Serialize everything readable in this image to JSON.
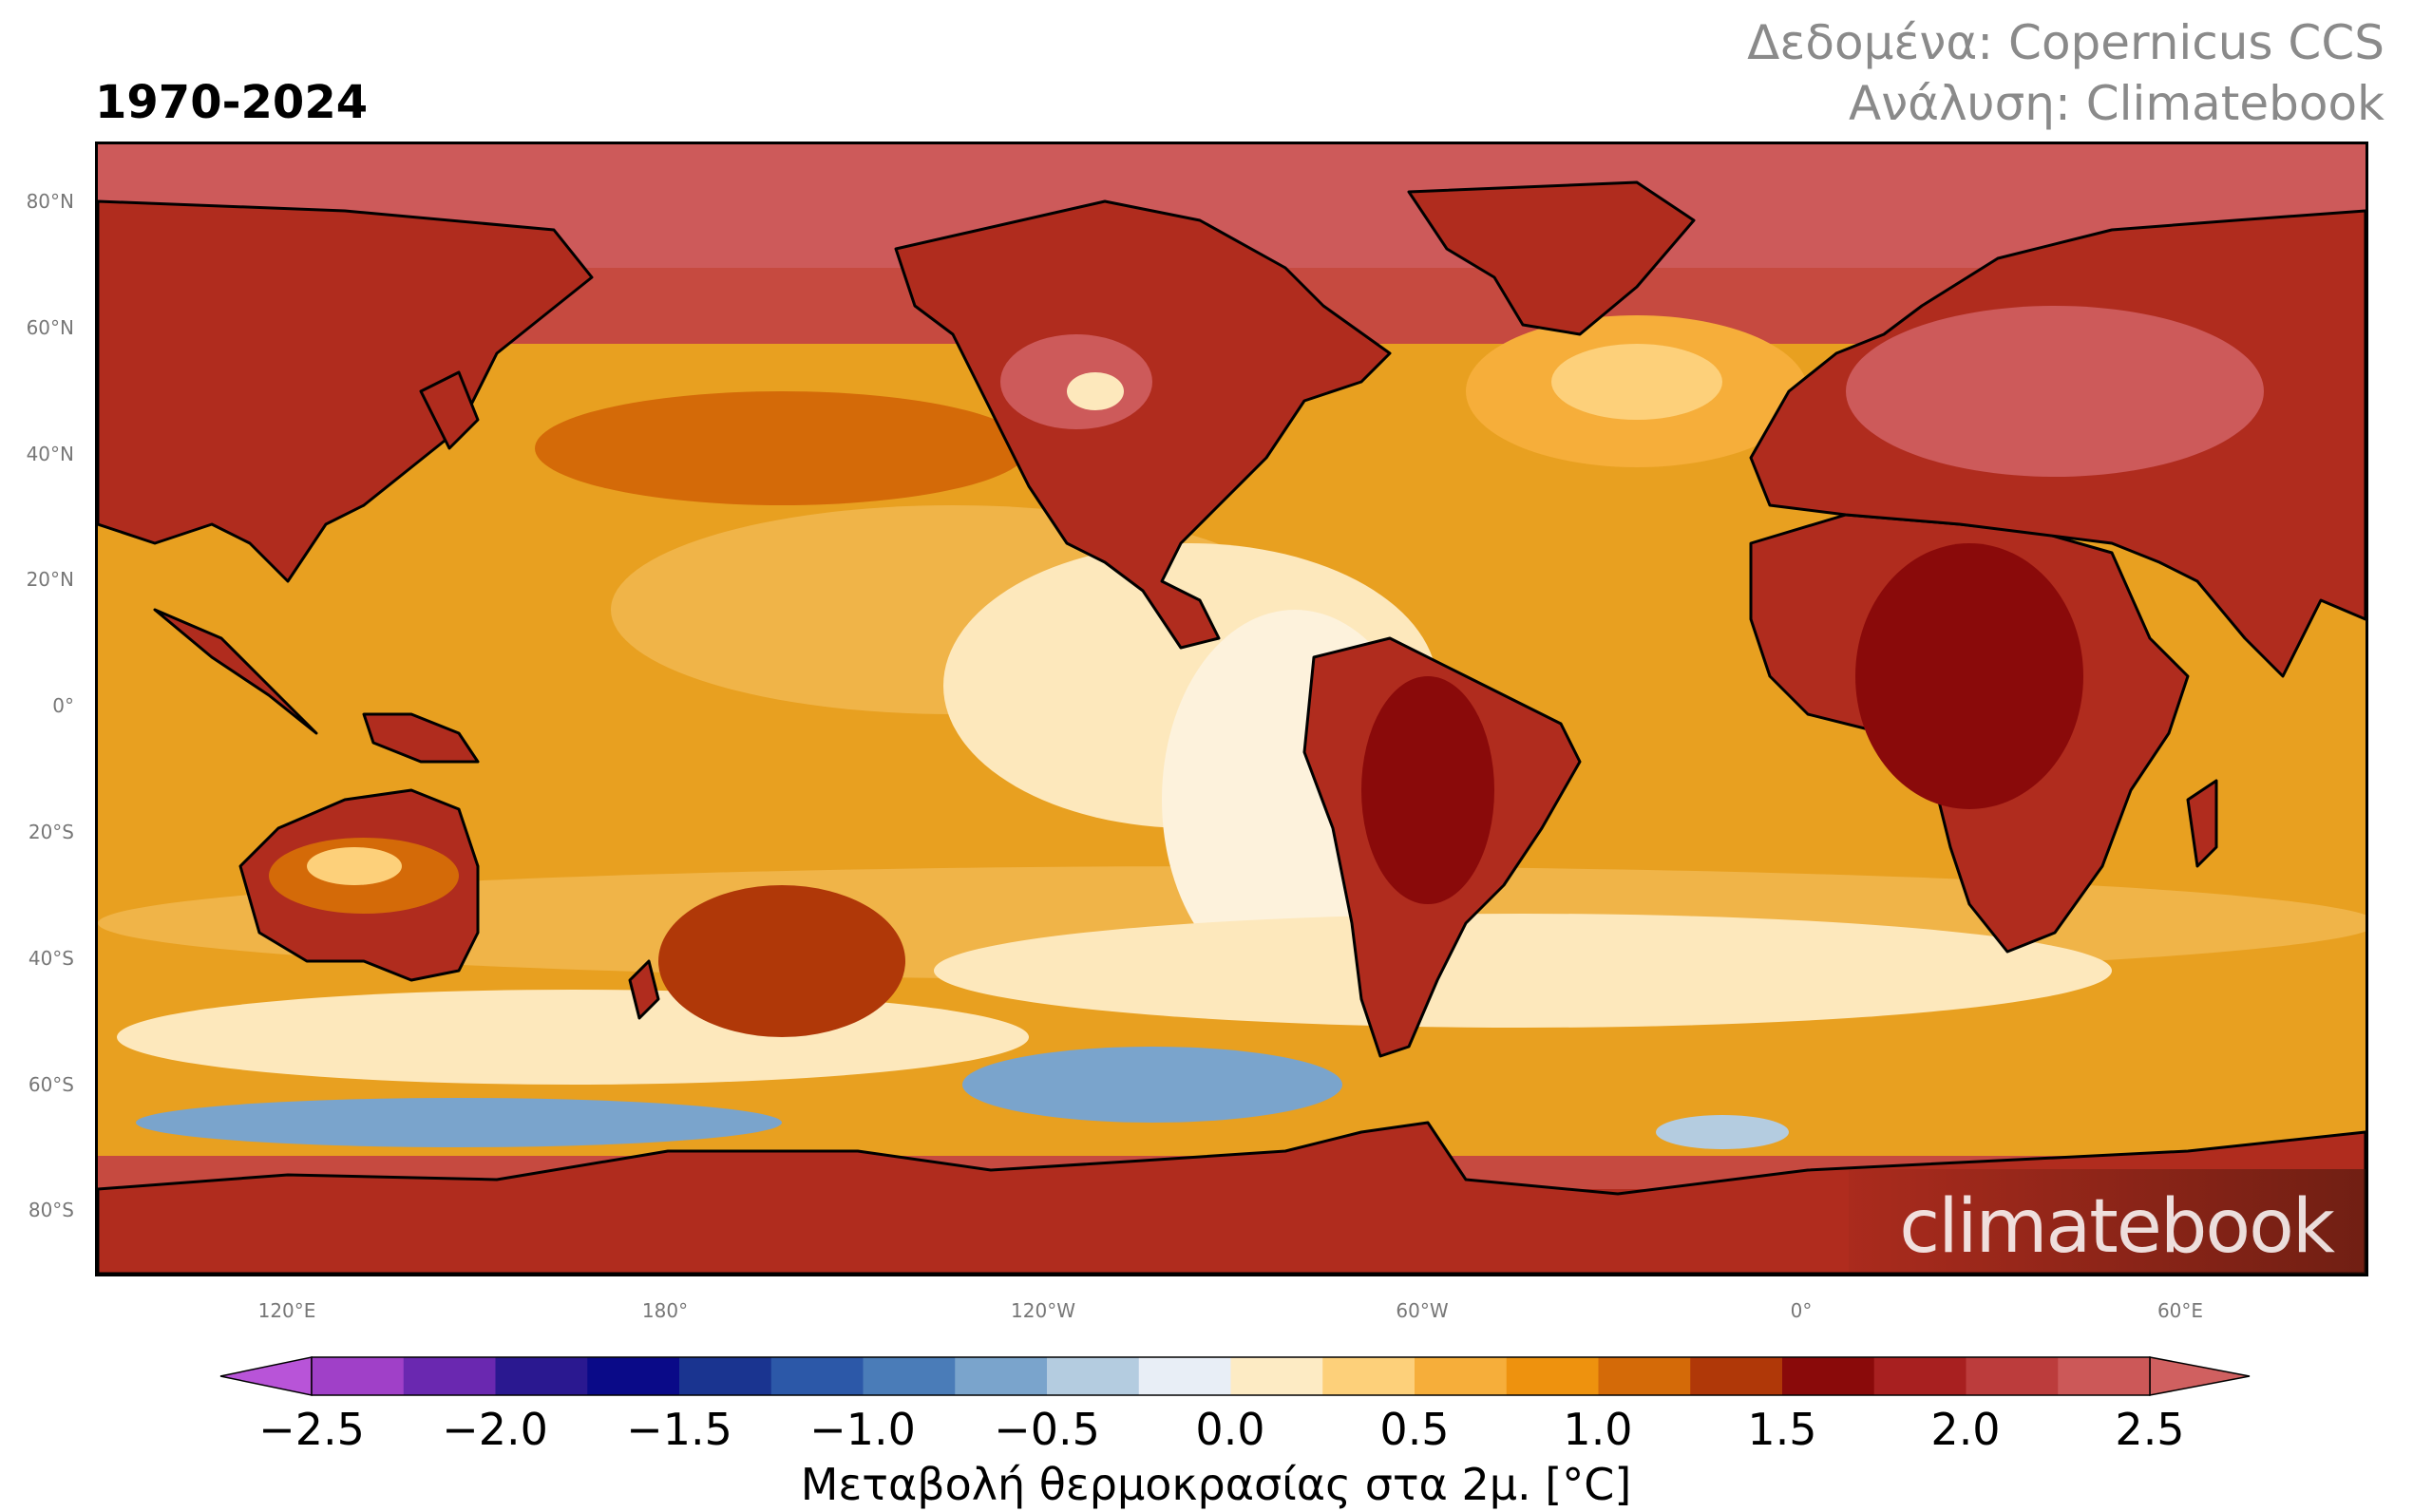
{
  "period": "1970-2024",
  "credits": {
    "data": "Δεδομένα: Copernicus CCS",
    "analysis": "Ανάλυση: Climatebook"
  },
  "watermark": "climatebook",
  "lat_labels": [
    "80°N",
    "60°N",
    "40°N",
    "20°N",
    "0°",
    "20°S",
    "40°S",
    "60°S",
    "80°S"
  ],
  "lon_labels": [
    "120°E",
    "180°",
    "120°W",
    "60°W",
    "0°",
    "60°E"
  ],
  "colorbar": {
    "label": "Μεταβολή θερμοκρασίας στα 2μ. [°C]",
    "ticks": [
      "−2.5",
      "−2.0",
      "−1.5",
      "−1.0",
      "−0.5",
      "0.0",
      "0.5",
      "1.0",
      "1.5",
      "2.0",
      "2.5"
    ],
    "colors": [
      "#a040c8",
      "#6a28b0",
      "#2a1890",
      "#0a0a88",
      "#1a3490",
      "#2c58a8",
      "#4a7cb8",
      "#7aa4cc",
      "#b4cce0",
      "#e8eef6",
      "#fdebc4",
      "#fdd07a",
      "#f6ae3a",
      "#ee920e",
      "#d46a08",
      "#b03808",
      "#8a0a0a",
      "#a82020",
      "#bc3c3c",
      "#cc5858"
    ],
    "extend_min_color": "#b854d8",
    "extend_max_color": "#d06060"
  },
  "palette": {
    "ocean": "#e8a020",
    "ocean_warm": "#f0b448",
    "ocean_cool": "#fde8bc",
    "land": "#b02c1e",
    "arctic": "#cd5a5a",
    "cold": "#7aa4cc"
  }
}
